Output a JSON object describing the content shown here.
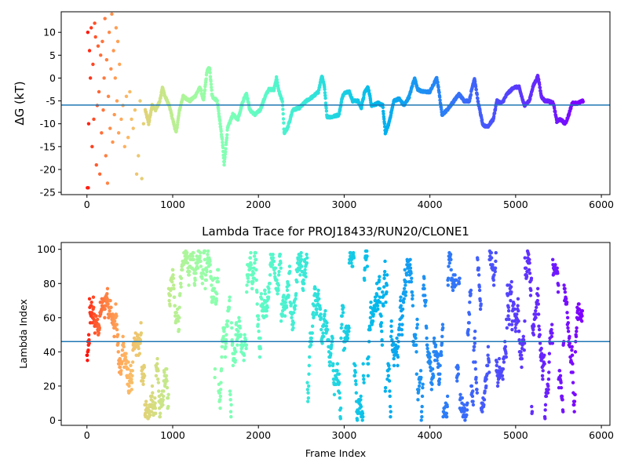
{
  "chart_data": [
    {
      "type": "scatter",
      "title": "",
      "xlabel": "",
      "ylabel": "ΔG (kT)",
      "xlim": [
        -300,
        6100
      ],
      "ylim": [
        -25.5,
        14.5
      ],
      "xticks": [
        0,
        1000,
        2000,
        3000,
        4000,
        5000,
        6000
      ],
      "yticks": [
        -25,
        -20,
        -15,
        -10,
        -5,
        0,
        5,
        10
      ],
      "hline": -5.9,
      "hline_color": "#1f77b4",
      "colormap": "rainbow (red at early frames → violet at late frames)",
      "grid": false,
      "legend": "none",
      "trace_keypoints": [
        [
          680,
          -7
        ],
        [
          720,
          -10
        ],
        [
          760,
          -6
        ],
        [
          800,
          -7
        ],
        [
          850,
          -5
        ],
        [
          880,
          -2
        ],
        [
          910,
          -4
        ],
        [
          960,
          -6
        ],
        [
          1000,
          -9
        ],
        [
          1040,
          -12
        ],
        [
          1080,
          -7
        ],
        [
          1120,
          -4
        ],
        [
          1200,
          -5
        ],
        [
          1260,
          -4
        ],
        [
          1320,
          -2
        ],
        [
          1360,
          -5
        ],
        [
          1400,
          1.5
        ],
        [
          1430,
          2.3
        ],
        [
          1460,
          -4
        ],
        [
          1520,
          -5
        ],
        [
          1580,
          -14
        ],
        [
          1600,
          -19
        ],
        [
          1640,
          -11
        ],
        [
          1700,
          -8
        ],
        [
          1760,
          -9
        ],
        [
          1820,
          -5
        ],
        [
          1860,
          -3.3
        ],
        [
          1900,
          -7
        ],
        [
          1960,
          -8
        ],
        [
          2020,
          -7
        ],
        [
          2080,
          -4
        ],
        [
          2120,
          -2.5
        ],
        [
          2180,
          -2.5
        ],
        [
          2210,
          0
        ],
        [
          2240,
          -3
        ],
        [
          2280,
          -5
        ],
        [
          2300,
          -12
        ],
        [
          2340,
          -11
        ],
        [
          2400,
          -7
        ],
        [
          2480,
          -6.5
        ],
        [
          2560,
          -5
        ],
        [
          2640,
          -4
        ],
        [
          2700,
          -3
        ],
        [
          2740,
          0.5
        ],
        [
          2770,
          -2
        ],
        [
          2800,
          -8.5
        ],
        [
          2860,
          -8.5
        ],
        [
          2940,
          -8
        ],
        [
          2980,
          -4
        ],
        [
          3020,
          -3
        ],
        [
          3060,
          -3
        ],
        [
          3100,
          -5
        ],
        [
          3160,
          -5
        ],
        [
          3200,
          -6.5
        ],
        [
          3240,
          -3
        ],
        [
          3280,
          -2
        ],
        [
          3320,
          -6
        ],
        [
          3400,
          -5.5
        ],
        [
          3450,
          -6
        ],
        [
          3480,
          -12
        ],
        [
          3520,
          -10
        ],
        [
          3580,
          -5
        ],
        [
          3640,
          -4.5
        ],
        [
          3700,
          -6
        ],
        [
          3760,
          -4
        ],
        [
          3820,
          0
        ],
        [
          3860,
          -2.5
        ],
        [
          3920,
          -3
        ],
        [
          4000,
          -3
        ],
        [
          4040,
          -1.5
        ],
        [
          4080,
          0
        ],
        [
          4100,
          -2
        ],
        [
          4140,
          -8
        ],
        [
          4200,
          -7
        ],
        [
          4280,
          -5
        ],
        [
          4340,
          -3.5
        ],
        [
          4400,
          -5
        ],
        [
          4460,
          -5
        ],
        [
          4500,
          -1.5
        ],
        [
          4520,
          0
        ],
        [
          4560,
          -5
        ],
        [
          4620,
          -10.5
        ],
        [
          4680,
          -10.5
        ],
        [
          4740,
          -9
        ],
        [
          4780,
          -5
        ],
        [
          4840,
          -5.5
        ],
        [
          4900,
          -3.5
        ],
        [
          4980,
          -2
        ],
        [
          5040,
          -2
        ],
        [
          5100,
          -6
        ],
        [
          5160,
          -5
        ],
        [
          5200,
          -2
        ],
        [
          5260,
          0.5
        ],
        [
          5300,
          -4
        ],
        [
          5340,
          -5
        ],
        [
          5380,
          -5
        ],
        [
          5440,
          -5.5
        ],
        [
          5480,
          -9.5
        ],
        [
          5520,
          -9
        ],
        [
          5580,
          -10
        ],
        [
          5620,
          -8
        ],
        [
          5660,
          -5.5
        ],
        [
          5720,
          -5.5
        ],
        [
          5790,
          -5
        ]
      ],
      "early_points": [
        [
          5,
          -24
        ],
        [
          15,
          -24
        ],
        [
          10,
          10
        ],
        [
          30,
          6
        ],
        [
          20,
          -10
        ],
        [
          40,
          0
        ],
        [
          50,
          11
        ],
        [
          60,
          -15
        ],
        [
          70,
          3
        ],
        [
          80,
          -9
        ],
        [
          90,
          12
        ],
        [
          100,
          9
        ],
        [
          110,
          -19
        ],
        [
          120,
          -6
        ],
        [
          130,
          7
        ],
        [
          140,
          -3
        ],
        [
          150,
          -21
        ],
        [
          160,
          5
        ],
        [
          170,
          -12
        ],
        [
          180,
          8
        ],
        [
          190,
          -7
        ],
        [
          200,
          0
        ],
        [
          210,
          13
        ],
        [
          220,
          -17
        ],
        [
          230,
          4
        ],
        [
          240,
          -23
        ],
        [
          250,
          -4
        ],
        [
          260,
          10
        ],
        [
          270,
          -11
        ],
        [
          280,
          2
        ],
        [
          290,
          14
        ],
        [
          300,
          -14
        ],
        [
          310,
          6
        ],
        [
          320,
          -8
        ],
        [
          330,
          0
        ],
        [
          340,
          11
        ],
        [
          350,
          -5
        ],
        [
          360,
          8
        ],
        [
          370,
          -12
        ],
        [
          380,
          3
        ],
        [
          400,
          -9
        ],
        [
          420,
          -6
        ],
        [
          440,
          -15
        ],
        [
          460,
          -4
        ],
        [
          480,
          -13
        ],
        [
          500,
          -3
        ],
        [
          520,
          -9
        ],
        [
          540,
          -11
        ],
        [
          560,
          -7
        ],
        [
          580,
          -21
        ],
        [
          600,
          -17
        ],
        [
          620,
          -5
        ],
        [
          640,
          -22
        ],
        [
          660,
          -10
        ]
      ]
    },
    {
      "type": "scatter",
      "title": "Lambda Trace for PROJ18433/RUN20/CLONE1",
      "xlabel": "Frame Index",
      "ylabel": "Lambda Index",
      "xlim": [
        -300,
        6100
      ],
      "ylim": [
        -3,
        104
      ],
      "xticks": [
        0,
        1000,
        2000,
        3000,
        4000,
        5000,
        6000
      ],
      "yticks": [
        0,
        20,
        40,
        60,
        80,
        100
      ],
      "hline": 46,
      "hline_color": "#1f77b4",
      "colormap": "rainbow (red at early frames → violet at late frames)",
      "value_range": [
        0,
        99
      ],
      "frame_range": [
        0,
        5780
      ],
      "grid": false,
      "legend": "none"
    }
  ],
  "axes_style": {
    "spine_color": "#000000",
    "marker_size": 2.2
  }
}
